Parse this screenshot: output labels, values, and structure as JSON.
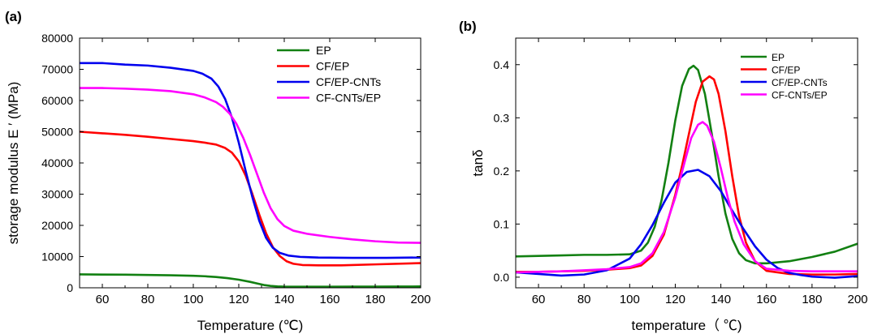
{
  "panels": [
    {
      "label": "(a)",
      "chart_data": {
        "type": "line",
        "xlabel": "Temperature (℃)",
        "ylabel": "storage modulus E ′ (MPa)",
        "xlim": [
          50,
          200
        ],
        "ylim": [
          0,
          80000
        ],
        "xticks": [
          60,
          80,
          100,
          120,
          140,
          160,
          180,
          200
        ],
        "yticks": [
          0,
          10000,
          20000,
          30000,
          40000,
          50000,
          60000,
          70000,
          80000
        ],
        "grid": false,
        "legend_position": "top-right",
        "series": [
          {
            "name": "EP",
            "color": "#128012",
            "x": [
              50,
              60,
              70,
              80,
              90,
              100,
              105,
              110,
              115,
              120,
              125,
              128,
              131,
              134,
              137,
              140,
              145,
              150,
              160,
              170,
              180,
              190,
              200
            ],
            "y": [
              4300,
              4250,
              4200,
              4100,
              4000,
              3850,
              3700,
              3450,
              3100,
              2600,
              1900,
              1400,
              900,
              600,
              450,
              380,
              350,
              350,
              350,
              360,
              380,
              400,
              430
            ]
          },
          {
            "name": "CF/EP",
            "color": "#ff0000",
            "x": [
              50,
              60,
              70,
              80,
              90,
              100,
              105,
              110,
              114,
              117,
              120,
              123,
              126,
              129,
              132,
              135,
              138,
              141,
              144,
              148,
              155,
              165,
              180,
              200
            ],
            "y": [
              50000,
              49500,
              49000,
              48400,
              47700,
              47000,
              46500,
              45900,
              44800,
              43300,
              40500,
              36000,
              30000,
              23500,
              17500,
              13000,
              10200,
              8500,
              7700,
              7300,
              7200,
              7200,
              7500,
              7900
            ]
          },
          {
            "name": "CF/EP-CNTs",
            "color": "#0000ee",
            "x": [
              50,
              60,
              70,
              80,
              90,
              100,
              104,
              108,
              111,
              114,
              117,
              120,
              123,
              126,
              129,
              132,
              135,
              138,
              142,
              147,
              155,
              170,
              185,
              200
            ],
            "y": [
              72000,
              72000,
              71500,
              71200,
              70500,
              69500,
              68600,
              67000,
              64500,
              60500,
              54500,
              46500,
              37500,
              29000,
              21500,
              16000,
              12800,
              11200,
              10300,
              9900,
              9700,
              9600,
              9600,
              9700
            ]
          },
          {
            "name": "CF-CNTs/EP",
            "color": "#ff00ff",
            "x": [
              50,
              60,
              70,
              80,
              90,
              100,
              105,
              110,
              113,
              116,
              119,
              122,
              125,
              128,
              131,
              134,
              137,
              140,
              144,
              150,
              160,
              170,
              180,
              190,
              200
            ],
            "y": [
              64000,
              64000,
              63800,
              63500,
              63000,
              62000,
              61000,
              59500,
              58000,
              55800,
              52500,
              48000,
              42500,
              36500,
              30500,
              25500,
              22000,
              19800,
              18300,
              17300,
              16300,
              15500,
              14900,
              14500,
              14400
            ]
          }
        ]
      }
    },
    {
      "label": "(b)",
      "chart_data": {
        "type": "line",
        "xlabel": "temperature（ ℃)",
        "ylabel": "tanδ",
        "xlim": [
          50,
          200
        ],
        "ylim": [
          -0.02,
          0.45
        ],
        "xticks": [
          60,
          80,
          100,
          120,
          140,
          160,
          180,
          200
        ],
        "yticks": [
          0.0,
          0.1,
          0.2,
          0.3,
          0.4
        ],
        "grid": false,
        "legend_position": "top-right",
        "series": [
          {
            "name": "EP",
            "color": "#128012",
            "x": [
              50,
              60,
              70,
              80,
              90,
              100,
              105,
              108,
              111,
              114,
              117,
              120,
              123,
              126,
              128,
              130,
              133,
              136,
              139,
              142,
              145,
              148,
              151,
              155,
              160,
              170,
              180,
              190,
              200
            ],
            "y": [
              0.039,
              0.04,
              0.041,
              0.042,
              0.042,
              0.043,
              0.05,
              0.065,
              0.095,
              0.145,
              0.215,
              0.295,
              0.36,
              0.392,
              0.398,
              0.39,
              0.345,
              0.27,
              0.19,
              0.12,
              0.072,
              0.045,
              0.032,
              0.026,
              0.026,
              0.03,
              0.038,
              0.048,
              0.063
            ]
          },
          {
            "name": "CF/EP",
            "color": "#ff0000",
            "x": [
              50,
              60,
              70,
              80,
              90,
              100,
              105,
              110,
              115,
              120,
              123,
              126,
              129,
              132,
              135,
              137,
              139,
              142,
              145,
              148,
              151,
              155,
              160,
              170,
              180,
              190,
              200
            ],
            "y": [
              0.01,
              0.01,
              0.011,
              0.012,
              0.014,
              0.017,
              0.022,
              0.04,
              0.08,
              0.155,
              0.21,
              0.27,
              0.33,
              0.368,
              0.378,
              0.372,
              0.345,
              0.275,
              0.19,
              0.115,
              0.065,
              0.03,
              0.012,
              0.006,
              0.005,
              0.005,
              0.006
            ]
          },
          {
            "name": "CF/EP-CNTs",
            "color": "#0000ee",
            "x": [
              50,
              60,
              70,
              80,
              90,
              100,
              105,
              110,
              115,
              120,
              125,
              130,
              135,
              140,
              145,
              150,
              155,
              160,
              165,
              170,
              175,
              180,
              190,
              200
            ],
            "y": [
              0.009,
              0.006,
              0.003,
              0.005,
              0.013,
              0.035,
              0.062,
              0.098,
              0.14,
              0.178,
              0.198,
              0.202,
              0.19,
              0.162,
              0.125,
              0.09,
              0.058,
              0.033,
              0.017,
              0.008,
              0.004,
              0.001,
              -0.001,
              0.002
            ]
          },
          {
            "name": "CF-CNTs/EP",
            "color": "#ff00ff",
            "x": [
              50,
              60,
              70,
              80,
              90,
              100,
              105,
              110,
              115,
              120,
              124,
              127,
              130,
              132,
              134,
              137,
              140,
              143,
              146,
              150,
              155,
              160,
              170,
              180,
              190,
              200
            ],
            "y": [
              0.009,
              0.01,
              0.011,
              0.013,
              0.015,
              0.019,
              0.026,
              0.045,
              0.085,
              0.15,
              0.215,
              0.262,
              0.287,
              0.292,
              0.285,
              0.255,
              0.205,
              0.15,
              0.105,
              0.062,
              0.03,
              0.016,
              0.012,
              0.011,
              0.011,
              0.011
            ]
          }
        ]
      }
    }
  ]
}
